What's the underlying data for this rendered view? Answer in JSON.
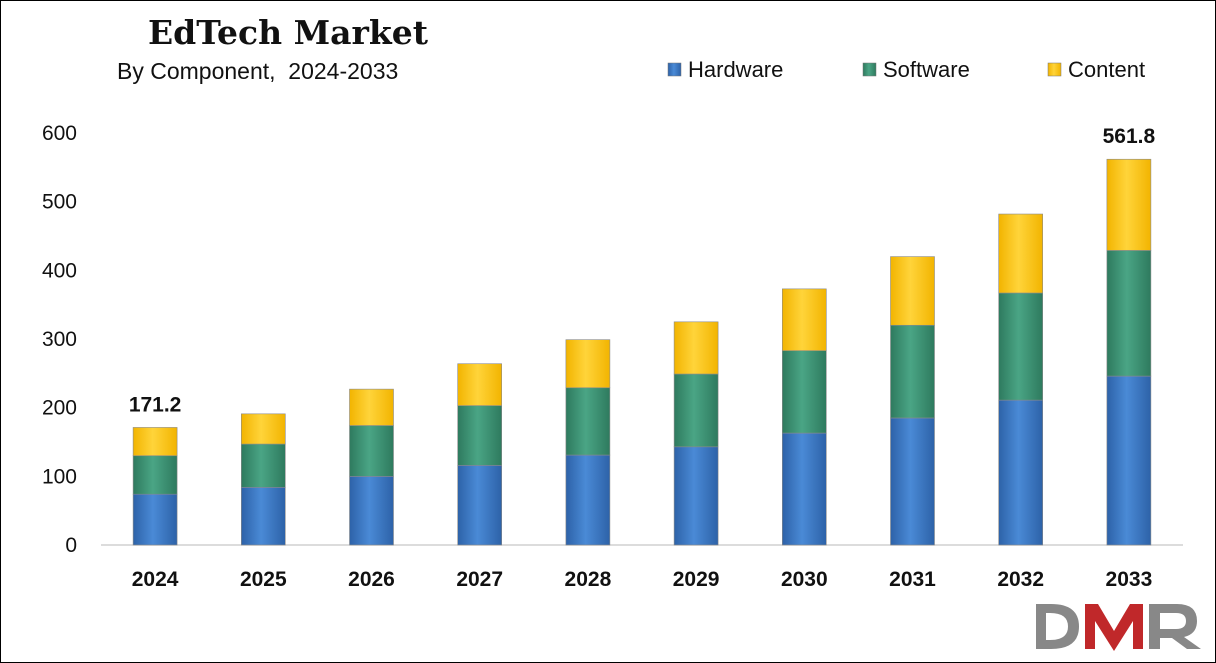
{
  "chart_data": {
    "type": "bar",
    "stacked": true,
    "title": "EdTech Market",
    "subtitle": "By Component,  2024-2033",
    "categories": [
      "2024",
      "2025",
      "2026",
      "2027",
      "2028",
      "2029",
      "2030",
      "2031",
      "2032",
      "2033"
    ],
    "series": [
      {
        "name": "Hardware",
        "color": "#3f7bc7",
        "values": [
          74,
          84,
          100,
          116,
          131,
          143,
          163,
          185,
          211,
          246
        ]
      },
      {
        "name": "Software",
        "color": "#3f9475",
        "values": [
          56,
          63,
          74,
          87,
          98,
          106,
          120,
          135,
          156,
          183
        ]
      },
      {
        "name": "Content",
        "color": "#ffc81a",
        "values": [
          41.2,
          44,
          53,
          61,
          70,
          76,
          90,
          100,
          115,
          132.8
        ]
      }
    ],
    "ylim": [
      0,
      600
    ],
    "yticks": [
      0,
      100,
      200,
      300,
      400,
      500,
      600
    ],
    "grid": false,
    "legend_position": "top-right",
    "total_labels": [
      {
        "category": "2024",
        "text": "171.2"
      },
      {
        "category": "2033",
        "text": "561.8"
      }
    ]
  },
  "logo": {
    "text": "DMR",
    "colors": [
      "#888888",
      "#c0282a",
      "#888888"
    ]
  }
}
